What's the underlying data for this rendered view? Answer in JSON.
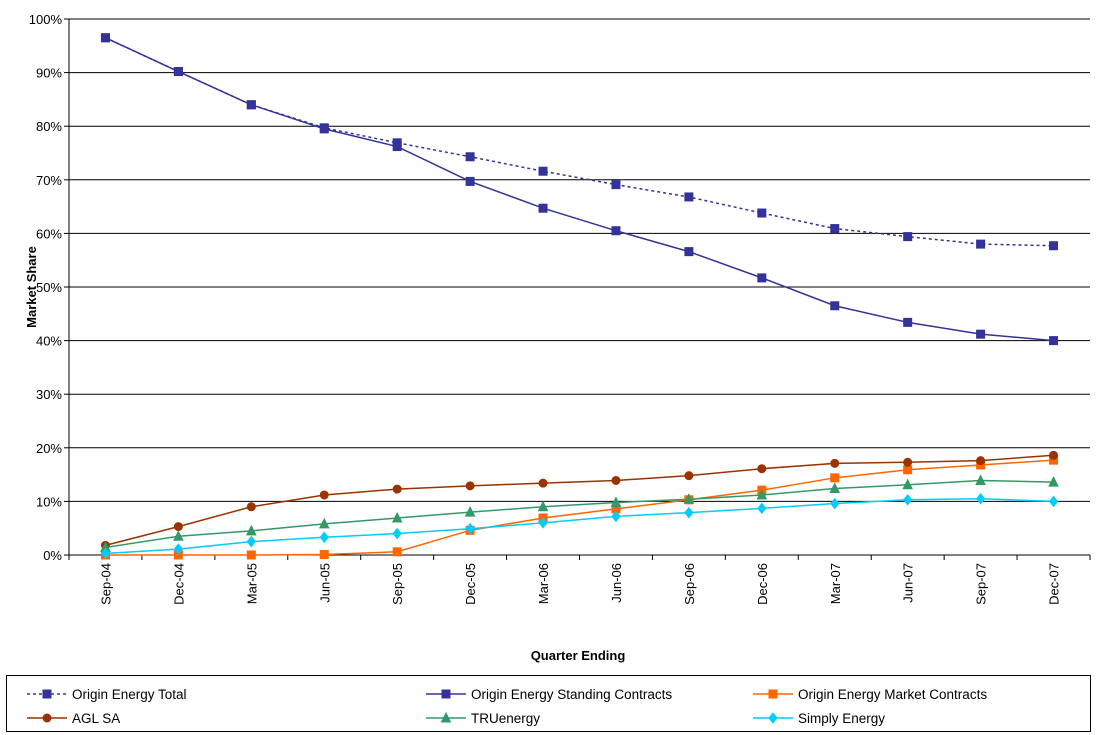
{
  "chart_data": {
    "type": "line",
    "title": "",
    "xlabel": "Quarter Ending",
    "ylabel": "Market Share",
    "ylim": [
      0,
      100
    ],
    "y_ticks": [
      "0%",
      "10%",
      "20%",
      "30%",
      "40%",
      "50%",
      "60%",
      "70%",
      "80%",
      "90%",
      "100%"
    ],
    "categories": [
      "Sep-04",
      "Dec-04",
      "Mar-05",
      "Jun-05",
      "Sep-05",
      "Dec-05",
      "Mar-06",
      "Jun-06",
      "Sep-06",
      "Dec-06",
      "Mar-07",
      "Jun-07",
      "Sep-07",
      "Dec-07"
    ],
    "grid": "horizontal",
    "legend_position": "bottom",
    "series": [
      {
        "name": "Origin Energy Total",
        "color": "#33339a",
        "marker": "square",
        "dash": "dotted",
        "values": [
          96.5,
          90.2,
          84.0,
          79.7,
          76.9,
          74.3,
          71.6,
          69.1,
          66.8,
          63.8,
          60.9,
          59.4,
          58.0,
          57.7
        ]
      },
      {
        "name": "Origin Energy Standing Contracts",
        "color": "#33339a",
        "marker": "square",
        "dash": "solid",
        "values": [
          96.5,
          90.2,
          84.0,
          79.5,
          76.2,
          69.7,
          64.7,
          60.5,
          56.6,
          51.7,
          46.5,
          43.4,
          41.2,
          40.0
        ]
      },
      {
        "name": "Origin Energy Market Contracts",
        "color": "#ff6600",
        "marker": "square",
        "dash": "solid",
        "values": [
          0.0,
          0.0,
          0.0,
          0.1,
          0.6,
          4.6,
          6.9,
          8.6,
          10.3,
          12.1,
          14.4,
          15.9,
          16.8,
          17.7
        ]
      },
      {
        "name": "AGL SA",
        "color": "#993300",
        "marker": "circle",
        "dash": "solid",
        "values": [
          1.8,
          5.3,
          9.0,
          11.2,
          12.3,
          12.9,
          13.4,
          13.9,
          14.8,
          16.1,
          17.1,
          17.3,
          17.6,
          18.6
        ]
      },
      {
        "name": "TRUenergy",
        "color": "#339966",
        "marker": "triangle",
        "dash": "solid",
        "values": [
          1.4,
          3.5,
          4.5,
          5.8,
          6.9,
          8.0,
          9.0,
          9.8,
          10.4,
          11.2,
          12.4,
          13.1,
          13.9,
          13.6
        ]
      },
      {
        "name": "Simply Energy",
        "color": "#00ccff",
        "marker": "diamond",
        "dash": "solid",
        "values": [
          0.3,
          1.1,
          2.5,
          3.3,
          4.0,
          4.9,
          6.0,
          7.2,
          7.9,
          8.7,
          9.6,
          10.3,
          10.5,
          10.0
        ]
      }
    ]
  }
}
